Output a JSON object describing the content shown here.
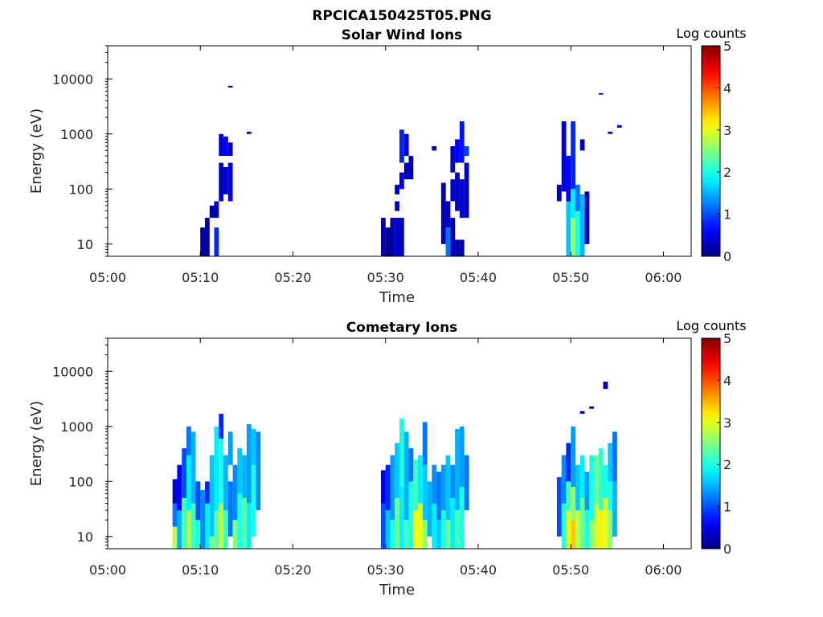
{
  "figure_title": "RPCICA150425T05.PNG",
  "chart_data": [
    {
      "type": "heatmap",
      "title": "Solar Wind Ions",
      "xlabel": "Time",
      "ylabel": "Energy (eV)",
      "y_scale": "log",
      "xlim": [
        "05:00",
        "06:03"
      ],
      "ylim": [
        6,
        40000
      ],
      "x_ticks": [
        "05:00",
        "05:10",
        "05:20",
        "05:30",
        "05:40",
        "05:50",
        "06:00"
      ],
      "y_ticks": [
        "10",
        "100",
        "1000",
        "10000"
      ],
      "colorbar": {
        "label": "Log counts",
        "range": [
          0,
          5
        ],
        "ticks": [
          "0",
          "1",
          "2",
          "3",
          "4",
          "5"
        ],
        "colormap": "jet"
      },
      "grid": false,
      "cells": [
        [
          "05:10",
          6,
          20,
          0.2
        ],
        [
          "05:10.5",
          6,
          30,
          0.2
        ],
        [
          "05:11",
          30,
          50,
          0.2
        ],
        [
          "05:11.5",
          6,
          20,
          0.8
        ],
        [
          "05:11.5",
          30,
          60,
          0.3
        ],
        [
          "05:12",
          60,
          300,
          0.3
        ],
        [
          "05:12",
          400,
          1000,
          0.4
        ],
        [
          "05:12.5",
          80,
          250,
          0.3
        ],
        [
          "05:12.5",
          400,
          900,
          0.6
        ],
        [
          "05:13",
          60,
          300,
          0.5
        ],
        [
          "05:13",
          400,
          700,
          0.3
        ],
        [
          "05:13",
          7000,
          7500,
          0.2
        ],
        [
          "05:15",
          1000,
          1100,
          0.2
        ],
        [
          "05:29.5",
          6,
          30,
          0.2
        ],
        [
          "05:30",
          6,
          20,
          0.1
        ],
        [
          "05:30.5",
          6,
          30,
          0.2
        ],
        [
          "05:31",
          6,
          30,
          0.4
        ],
        [
          "05:31",
          40,
          60,
          0.3
        ],
        [
          "05:31",
          80,
          120,
          0.4
        ],
        [
          "05:31.5",
          6,
          30,
          0.3
        ],
        [
          "05:31.5",
          100,
          200,
          0.5
        ],
        [
          "05:31.5",
          300,
          1200,
          0.8
        ],
        [
          "05:32",
          150,
          300,
          0.3
        ],
        [
          "05:32",
          400,
          1000,
          0.5
        ],
        [
          "05:32.5",
          150,
          400,
          0.2
        ],
        [
          "05:35",
          500,
          600,
          0.2
        ],
        [
          "05:36",
          10,
          130,
          0.3
        ],
        [
          "05:36.5",
          6,
          20,
          1.2
        ],
        [
          "05:36.5",
          20,
          60,
          0.3
        ],
        [
          "05:37",
          6,
          30,
          0.3
        ],
        [
          "05:37",
          60,
          150,
          0.4
        ],
        [
          "05:37",
          200,
          600,
          0.3
        ],
        [
          "05:37.5",
          6,
          12,
          0.2
        ],
        [
          "05:37.5",
          40,
          200,
          0.3
        ],
        [
          "05:37.5",
          300,
          800,
          0.6
        ],
        [
          "05:38",
          6,
          12,
          0.2
        ],
        [
          "05:38",
          30,
          150,
          0.4
        ],
        [
          "05:38",
          300,
          1700,
          0.7
        ],
        [
          "05:38.5",
          30,
          300,
          0.3
        ],
        [
          "05:38.5",
          400,
          600,
          0.9
        ],
        [
          "05:48.5",
          60,
          120,
          0.3
        ],
        [
          "05:49",
          90,
          1700,
          0.5
        ],
        [
          "05:49.5",
          6,
          60,
          1.6
        ],
        [
          "05:49.5",
          60,
          400,
          0.6
        ],
        [
          "05:50",
          6,
          30,
          2.6
        ],
        [
          "05:50",
          30,
          100,
          1.8
        ],
        [
          "05:50",
          100,
          1700,
          0.8
        ],
        [
          "05:50.5",
          6,
          40,
          2.0
        ],
        [
          "05:50.5",
          40,
          120,
          1.2
        ],
        [
          "05:51",
          6,
          80,
          1.5
        ],
        [
          "05:51",
          500,
          800,
          0.3
        ],
        [
          "05:51.5",
          10,
          90,
          0.3
        ],
        [
          "05:53",
          5200,
          5500,
          0.2
        ],
        [
          "05:54",
          1000,
          1100,
          0.2
        ],
        [
          "05:55",
          1300,
          1450,
          0.3
        ]
      ]
    },
    {
      "type": "heatmap",
      "title": "Cometary Ions",
      "xlabel": "Time",
      "ylabel": "Energy (eV)",
      "y_scale": "log",
      "xlim": [
        "05:00",
        "06:03"
      ],
      "ylim": [
        6,
        40000
      ],
      "x_ticks": [
        "05:00",
        "05:10",
        "05:20",
        "05:30",
        "05:40",
        "05:50",
        "06:00"
      ],
      "y_ticks": [
        "10",
        "100",
        "1000",
        "10000"
      ],
      "colorbar": {
        "label": "Log counts",
        "range": [
          0,
          5
        ],
        "ticks": [
          "0",
          "1",
          "2",
          "3",
          "4",
          "5"
        ],
        "colormap": "jet"
      },
      "grid": false,
      "cells": [
        [
          "05:07",
          6,
          15,
          2.8
        ],
        [
          "05:07",
          15,
          40,
          1.2
        ],
        [
          "05:07",
          40,
          110,
          0.4
        ],
        [
          "05:07.5",
          6,
          30,
          1.5
        ],
        [
          "05:07.5",
          30,
          200,
          0.6
        ],
        [
          "05:08",
          6,
          50,
          2.2
        ],
        [
          "05:08",
          50,
          400,
          1.0
        ],
        [
          "05:08.5",
          6,
          30,
          2.7
        ],
        [
          "05:08.5",
          30,
          300,
          1.8
        ],
        [
          "05:08.5",
          300,
          1000,
          1.2
        ],
        [
          "05:09",
          6,
          40,
          2.2
        ],
        [
          "05:09",
          40,
          800,
          1.5
        ],
        [
          "05:09.5",
          6,
          20,
          2.0
        ],
        [
          "05:09.5",
          20,
          100,
          1.0
        ],
        [
          "05:10",
          6,
          70,
          1.3
        ],
        [
          "05:10.5",
          6,
          40,
          1.8
        ],
        [
          "05:10.5",
          40,
          100,
          0.8
        ],
        [
          "05:11",
          6,
          10,
          2.5
        ],
        [
          "05:11",
          10,
          300,
          1.6
        ],
        [
          "05:11.5",
          6,
          30,
          2.3
        ],
        [
          "05:11.5",
          30,
          1000,
          1.8
        ],
        [
          "05:12",
          6,
          40,
          2.8
        ],
        [
          "05:12",
          40,
          600,
          2.0
        ],
        [
          "05:12",
          600,
          1700,
          0.8
        ],
        [
          "05:12.5",
          6,
          30,
          2.2
        ],
        [
          "05:12.5",
          30,
          300,
          1.5
        ],
        [
          "05:13",
          10,
          100,
          1.2
        ],
        [
          "05:13",
          200,
          800,
          1.4
        ],
        [
          "05:13.5",
          6,
          20,
          2.5
        ],
        [
          "05:13.5",
          20,
          200,
          1.3
        ],
        [
          "05:14",
          6,
          60,
          2.0
        ],
        [
          "05:14",
          60,
          400,
          1.6
        ],
        [
          "05:14.5",
          6,
          50,
          2.3
        ],
        [
          "05:14.5",
          50,
          300,
          1.5
        ],
        [
          "05:15",
          6,
          40,
          1.8
        ],
        [
          "05:15",
          40,
          1100,
          1.4
        ],
        [
          "05:15.5",
          10,
          200,
          2.0
        ],
        [
          "05:15.5",
          200,
          900,
          1.6
        ],
        [
          "05:16",
          30,
          800,
          1.3
        ],
        [
          "05:29.5",
          6,
          40,
          1.0
        ],
        [
          "05:29.5",
          40,
          160,
          0.5
        ],
        [
          "05:30",
          6,
          30,
          1.6
        ],
        [
          "05:30",
          30,
          200,
          0.8
        ],
        [
          "05:30.5",
          6,
          20,
          2.0
        ],
        [
          "05:30.5",
          20,
          300,
          1.4
        ],
        [
          "05:31",
          6,
          50,
          2.4
        ],
        [
          "05:31",
          50,
          500,
          1.6
        ],
        [
          "05:31.5",
          6,
          80,
          1.8
        ],
        [
          "05:31.5",
          80,
          1400,
          2.0
        ],
        [
          "05:32",
          6,
          20,
          2.2
        ],
        [
          "05:32",
          20,
          800,
          1.5
        ],
        [
          "05:32.5",
          6,
          100,
          2.0
        ],
        [
          "05:32.5",
          100,
          400,
          1.2
        ],
        [
          "05:33",
          6,
          30,
          3.1
        ],
        [
          "05:33",
          30,
          250,
          2.2
        ],
        [
          "05:33.5",
          6,
          40,
          3.0
        ],
        [
          "05:33.5",
          40,
          300,
          1.8
        ],
        [
          "05:34",
          6,
          20,
          2.6
        ],
        [
          "05:34",
          20,
          200,
          1.6
        ],
        [
          "05:34",
          200,
          1200,
          1.2
        ],
        [
          "05:34.5",
          10,
          100,
          1.5
        ],
        [
          "05:35",
          6,
          40,
          1.8
        ],
        [
          "05:35",
          40,
          200,
          1.3
        ],
        [
          "05:35.5",
          6,
          20,
          1.6
        ],
        [
          "05:35.5",
          20,
          150,
          1.2
        ],
        [
          "05:36",
          6,
          30,
          2.0
        ],
        [
          "05:36",
          30,
          200,
          1.4
        ],
        [
          "05:36.5",
          6,
          20,
          2.4
        ],
        [
          "05:36.5",
          20,
          300,
          1.6
        ],
        [
          "05:37",
          6,
          50,
          1.8
        ],
        [
          "05:37",
          50,
          200,
          1.3
        ],
        [
          "05:37.5",
          6,
          30,
          2.2
        ],
        [
          "05:37.5",
          30,
          900,
          1.5
        ],
        [
          "05:38",
          6,
          80,
          2.0
        ],
        [
          "05:38",
          80,
          1000,
          1.4
        ],
        [
          "05:38.5",
          30,
          300,
          1.2
        ],
        [
          "05:48.5",
          10,
          120,
          1.0
        ],
        [
          "05:49",
          6,
          40,
          2.0
        ],
        [
          "05:49",
          40,
          300,
          1.3
        ],
        [
          "05:49.5",
          6,
          30,
          3.0
        ],
        [
          "05:49.5",
          30,
          100,
          2.2
        ],
        [
          "05:49.5",
          100,
          500,
          0.8
        ],
        [
          "05:50",
          6,
          20,
          3.4
        ],
        [
          "05:50",
          20,
          80,
          2.6
        ],
        [
          "05:50",
          80,
          1000,
          1.4
        ],
        [
          "05:50.5",
          6,
          30,
          2.8
        ],
        [
          "05:50.5",
          30,
          200,
          1.6
        ],
        [
          "05:51",
          6,
          50,
          2.4
        ],
        [
          "05:51",
          50,
          300,
          1.8
        ],
        [
          "05:51.5",
          6,
          30,
          2.0
        ],
        [
          "05:51.5",
          30,
          150,
          1.4
        ],
        [
          "05:52",
          6,
          20,
          2.6
        ],
        [
          "05:52",
          20,
          300,
          2.0
        ],
        [
          "05:52.5",
          6,
          40,
          2.9
        ],
        [
          "05:52.5",
          40,
          300,
          2.4
        ],
        [
          "05:53",
          6,
          30,
          3.2
        ],
        [
          "05:53",
          30,
          400,
          2.1
        ],
        [
          "05:53.5",
          6,
          50,
          3.0
        ],
        [
          "05:53.5",
          50,
          200,
          2.0
        ],
        [
          "05:54",
          6,
          30,
          2.6
        ],
        [
          "05:54",
          30,
          100,
          2.0
        ],
        [
          "05:54",
          100,
          500,
          1.6
        ],
        [
          "05:54.5",
          10,
          100,
          1.5
        ],
        [
          "05:54.5",
          100,
          800,
          1.2
        ],
        [
          "05:51",
          1700,
          1900,
          0.3
        ],
        [
          "05:52",
          2100,
          2300,
          0.2
        ],
        [
          "05:53.5",
          4800,
          6500,
          0.3
        ]
      ]
    }
  ]
}
